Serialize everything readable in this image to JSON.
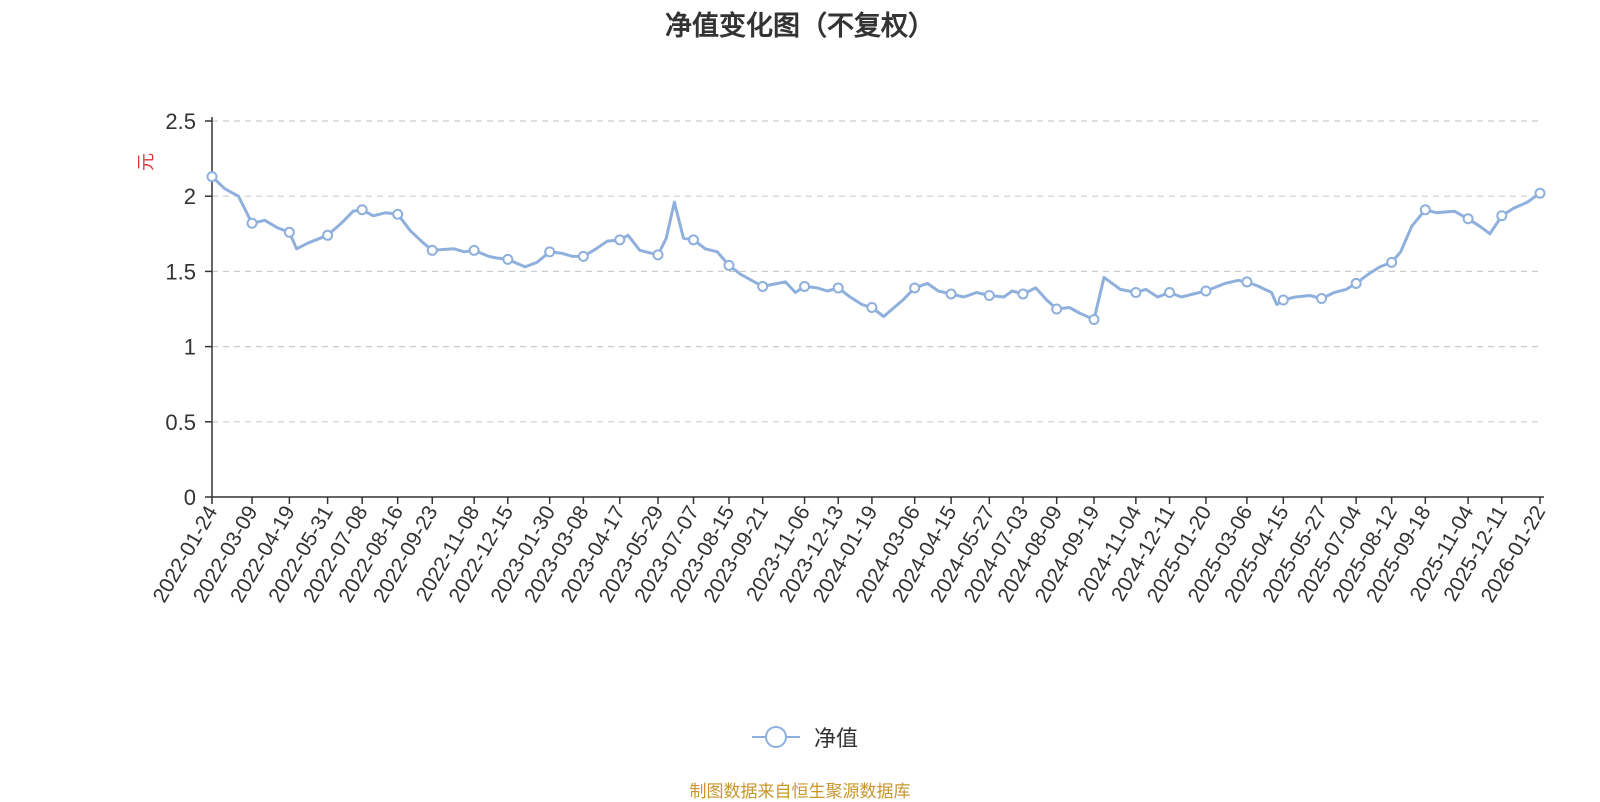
{
  "chart_data": {
    "type": "line",
    "title": "净值变化图（不复权）",
    "ylabel": "元",
    "ylim": [
      0,
      2.5
    ],
    "yticks": [
      "0",
      "0.5",
      "1",
      "1.5",
      "2",
      "2.5"
    ],
    "grid": true,
    "legend_position": "bottom-center",
    "x_tick_labels": [
      "2022-01-24",
      "2022-03-09",
      "2022-04-19",
      "2022-05-31",
      "2022-07-08",
      "2022-08-16",
      "2022-09-23",
      "2022-11-08",
      "2022-12-15",
      "2023-01-30",
      "2023-03-08",
      "2023-04-17",
      "2023-05-29",
      "2023-07-07",
      "2023-08-15",
      "2023-09-21",
      "2023-11-06",
      "2023-12-13",
      "2024-01-19",
      "2024-03-06",
      "2024-04-15",
      "2024-05-27",
      "2024-07-03",
      "2024-08-09",
      "2024-09-19",
      "2024-11-04",
      "2024-12-11",
      "2025-01-20",
      "2025-03-06",
      "2025-04-15",
      "2025-05-27",
      "2025-07-04",
      "2025-08-12",
      "2025-09-18",
      "2025-11-04",
      "2025-12-11",
      "2026-01-22"
    ],
    "series": [
      {
        "name": "净值",
        "color": "#8fb0dd",
        "x": [
          "2022-01-24",
          "2022-02-07",
          "2022-02-22",
          "2022-03-09",
          "2022-03-23",
          "2022-04-06",
          "2022-04-19",
          "2022-04-27",
          "2022-05-10",
          "2022-05-31",
          "2022-06-15",
          "2022-06-28",
          "2022-07-08",
          "2022-07-20",
          "2022-08-03",
          "2022-08-16",
          "2022-08-30",
          "2022-09-13",
          "2022-09-23",
          "2022-10-17",
          "2022-10-28",
          "2022-11-08",
          "2022-11-24",
          "2022-12-02",
          "2022-12-15",
          "2023-01-03",
          "2023-01-16",
          "2023-01-30",
          "2023-02-13",
          "2023-02-24",
          "2023-03-08",
          "2023-03-22",
          "2023-04-03",
          "2023-04-17",
          "2023-04-26",
          "2023-05-09",
          "2023-05-29",
          "2023-06-07",
          "2023-06-16",
          "2023-06-26",
          "2023-07-07",
          "2023-07-20",
          "2023-08-02",
          "2023-08-15",
          "2023-08-28",
          "2023-09-21",
          "2023-10-16",
          "2023-10-27",
          "2023-11-06",
          "2023-11-20",
          "2023-12-01",
          "2023-12-13",
          "2023-12-26",
          "2024-01-08",
          "2024-01-19",
          "2024-02-01",
          "2024-02-22",
          "2024-03-06",
          "2024-03-20",
          "2024-04-01",
          "2024-04-15",
          "2024-04-29",
          "2024-05-13",
          "2024-05-27",
          "2024-06-12",
          "2024-06-21",
          "2024-07-03",
          "2024-07-17",
          "2024-07-29",
          "2024-08-09",
          "2024-08-23",
          "2024-09-04",
          "2024-09-19",
          "2024-09-30",
          "2024-10-18",
          "2024-11-04",
          "2024-11-15",
          "2024-11-28",
          "2024-12-11",
          "2024-12-24",
          "2025-01-06",
          "2025-01-20",
          "2025-02-10",
          "2025-02-24",
          "2025-03-06",
          "2025-03-19",
          "2025-04-02",
          "2025-04-08",
          "2025-04-15",
          "2025-04-28",
          "2025-05-14",
          "2025-05-27",
          "2025-06-10",
          "2025-06-23",
          "2025-07-04",
          "2025-07-17",
          "2025-07-30",
          "2025-08-12",
          "2025-08-22",
          "2025-09-03",
          "2025-09-18",
          "2025-09-30",
          "2025-10-20",
          "2025-11-04",
          "2025-11-17",
          "2025-11-28",
          "2025-12-11",
          "2025-12-24",
          "2026-01-08",
          "2026-01-22"
        ],
        "y": [
          2.13,
          2.05,
          2.0,
          1.82,
          1.84,
          1.79,
          1.76,
          1.65,
          1.69,
          1.74,
          1.82,
          1.9,
          1.91,
          1.87,
          1.89,
          1.88,
          1.77,
          1.69,
          1.64,
          1.65,
          1.63,
          1.64,
          1.6,
          1.59,
          1.58,
          1.53,
          1.56,
          1.63,
          1.62,
          1.6,
          1.6,
          1.65,
          1.7,
          1.71,
          1.74,
          1.64,
          1.61,
          1.72,
          1.96,
          1.72,
          1.71,
          1.65,
          1.63,
          1.54,
          1.48,
          1.4,
          1.43,
          1.36,
          1.4,
          1.39,
          1.37,
          1.39,
          1.33,
          1.28,
          1.26,
          1.2,
          1.31,
          1.39,
          1.42,
          1.37,
          1.35,
          1.33,
          1.36,
          1.34,
          1.33,
          1.37,
          1.35,
          1.39,
          1.31,
          1.25,
          1.26,
          1.22,
          1.18,
          1.46,
          1.38,
          1.36,
          1.38,
          1.33,
          1.36,
          1.33,
          1.35,
          1.37,
          1.42,
          1.44,
          1.43,
          1.4,
          1.36,
          1.28,
          1.31,
          1.33,
          1.34,
          1.32,
          1.36,
          1.38,
          1.42,
          1.48,
          1.53,
          1.56,
          1.63,
          1.8,
          1.91,
          1.89,
          1.9,
          1.85,
          1.8,
          1.75,
          1.87,
          1.92,
          1.96,
          2.02
        ]
      }
    ]
  },
  "source_note": "制图数据来自恒生聚源数据库"
}
